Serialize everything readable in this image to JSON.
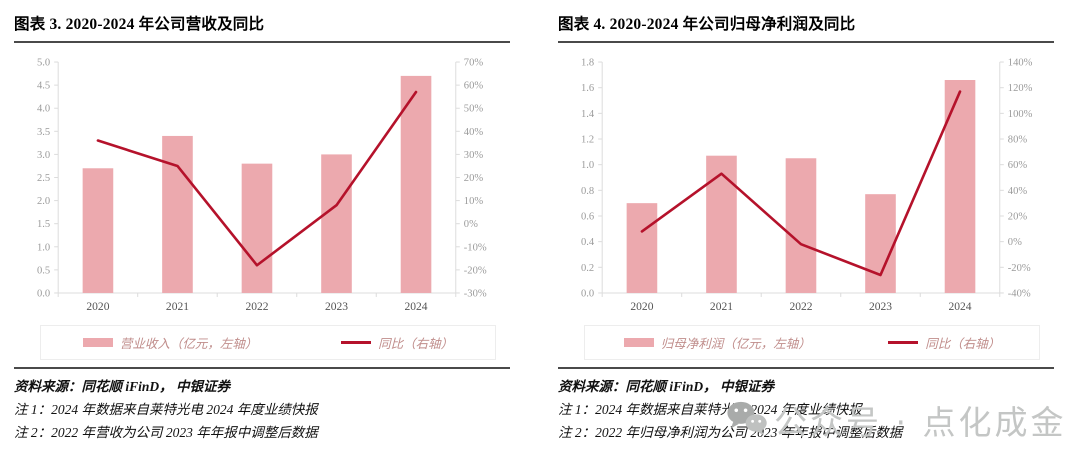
{
  "colors": {
    "bar": "#ECA9AE",
    "line": "#B5122B",
    "axis_line": "#dcdcdc",
    "tick_label": "#9b9b9b",
    "year_label": "#555555",
    "legend_text": "#c08d8b",
    "rule": "#4a4a4a",
    "watermark": "#c4c6c5"
  },
  "watermark": {
    "icon": "wechat-icon",
    "text": "公众号 · 点化成金"
  },
  "panels": [
    {
      "title": "图表 3. 2020-2024 年公司营收及同比",
      "legend_bar": "营业收入（亿元，左轴）",
      "legend_line": "同比（右轴）",
      "source": "资料来源：同花顺 iFinD，  中银证券",
      "notes": [
        "注 1：2024 年数据来自莱特光电 2024 年度业绩快报",
        "注 2：2022 年营收为公司 2023 年年报中调整后数据"
      ]
    },
    {
      "title": "图表 4. 2020-2024 年公司归母净利润及同比",
      "legend_bar": "归母净利润（亿元，左轴）",
      "legend_line": "同比（右轴）",
      "source": "资料来源：同花顺 iFinD，  中银证券",
      "notes": [
        "注 1：2024 年数据来自莱特光电 2024 年度业绩快报",
        "注 2：2022 年归母净利润为公司 2023 年年报中调整后数据"
      ]
    }
  ],
  "chart_data": [
    {
      "type": "bar+line",
      "title": "图表 3. 2020-2024 年公司营收及同比",
      "categories": [
        "2020",
        "2021",
        "2022",
        "2023",
        "2024"
      ],
      "series": [
        {
          "name": "营业收入（亿元，左轴）",
          "type": "bar",
          "axis": "left",
          "values": [
            2.7,
            3.4,
            2.8,
            3.0,
            4.7
          ]
        },
        {
          "name": "同比（右轴）",
          "type": "line",
          "axis": "right",
          "unit": "%",
          "values": [
            36,
            25,
            -18,
            8,
            57
          ]
        }
      ],
      "left_axis": {
        "min": 0.0,
        "max": 5.0,
        "step": 0.5,
        "decimals": 1
      },
      "right_axis": {
        "min": -30,
        "max": 70,
        "step": 10,
        "suffix": "%"
      },
      "grid": false,
      "legend_position": "bottom"
    },
    {
      "type": "bar+line",
      "title": "图表 4. 2020-2024 年公司归母净利润及同比",
      "categories": [
        "2020",
        "2021",
        "2022",
        "2023",
        "2024"
      ],
      "series": [
        {
          "name": "归母净利润（亿元，左轴）",
          "type": "bar",
          "axis": "left",
          "values": [
            0.7,
            1.07,
            1.05,
            0.77,
            1.66
          ]
        },
        {
          "name": "同比（右轴）",
          "type": "line",
          "axis": "right",
          "unit": "%",
          "values": [
            8,
            53,
            -2,
            -26,
            117
          ]
        }
      ],
      "left_axis": {
        "min": 0.0,
        "max": 1.8,
        "step": 0.2,
        "decimals": 1
      },
      "right_axis": {
        "min": -40,
        "max": 140,
        "step": 20,
        "suffix": "%"
      },
      "grid": false,
      "legend_position": "bottom"
    }
  ]
}
